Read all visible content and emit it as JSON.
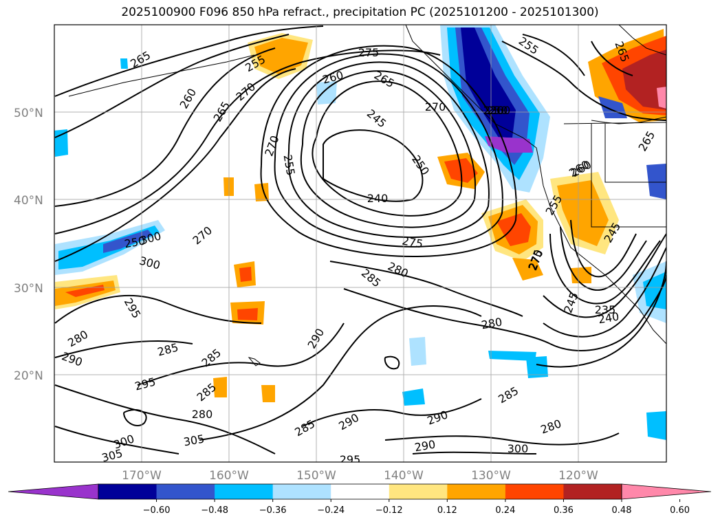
{
  "title": "2025100900 F096 850 hPa refract., precipitation PC (2025101200 - 2025101300)",
  "lat_labels": [
    "50°N",
    "40°N",
    "30°N",
    "20°N"
  ],
  "lon_labels": [
    "170°W",
    "160°W",
    "150°W",
    "140°W",
    "130°W",
    "120°W"
  ],
  "colorbar": {
    "ticks": [
      "−0.60",
      "−0.48",
      "−0.36",
      "−0.24",
      "−0.12",
      "0.12",
      "0.24",
      "0.36",
      "0.48",
      "0.60"
    ],
    "colors": [
      "#9933cc",
      "#000099",
      "#3355cc",
      "#00bfff",
      "#aee2ff",
      "#ffffff",
      "#ffe680",
      "#ffa500",
      "#ff4500",
      "#b22222",
      "#ff88aa"
    ]
  },
  "contour_labels": [
    "265",
    "260",
    "265",
    "270",
    "255",
    "275",
    "260",
    "265",
    "245",
    "270",
    "250",
    "255",
    "260",
    "265",
    "270",
    "255",
    "240",
    "250",
    "275",
    "260",
    "255",
    "245",
    "270",
    "300",
    "280",
    "285",
    "270",
    "250",
    "300",
    "295",
    "280",
    "290",
    "285",
    "285",
    "290",
    "280",
    "295",
    "285",
    "280",
    "285",
    "290",
    "290",
    "290",
    "295",
    "300",
    "305",
    "305",
    "300",
    "280",
    "285",
    "235",
    "240",
    "245",
    "275",
    "260",
    "250",
    "265"
  ]
}
